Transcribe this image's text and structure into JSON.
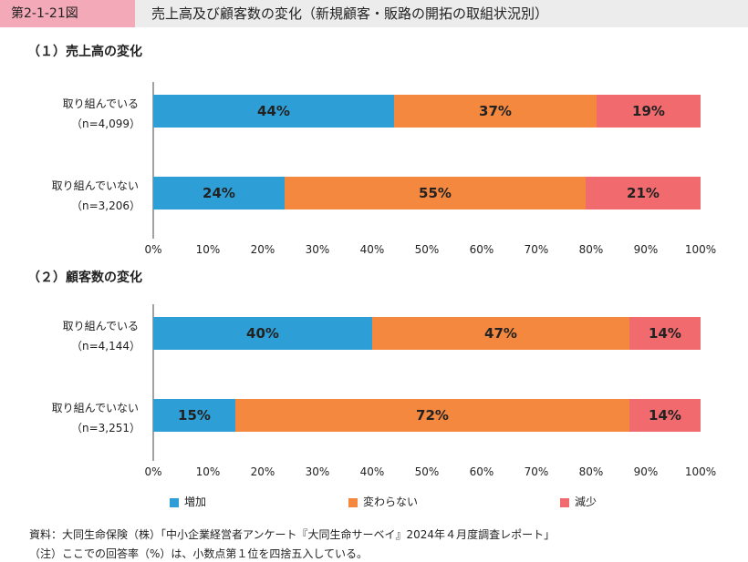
{
  "header": {
    "figure_number": "第2-1-21図",
    "title": "売上高及び顧客数の変化（新規顧客・販路の開拓の取組状況別）"
  },
  "colors": {
    "increase": "#2e9fd6",
    "unchanged": "#f5883f",
    "decrease": "#f06a6e"
  },
  "chart_data": [
    {
      "type": "bar",
      "orientation": "horizontal",
      "stacked": true,
      "title": "（１）売上高の変化",
      "categories": [
        [
          "取り組んでいる",
          "（n=4,099）"
        ],
        [
          "取り組んでいない",
          "（n=3,206）"
        ]
      ],
      "series": [
        {
          "name": "増加",
          "values": [
            44,
            24
          ]
        },
        {
          "name": "変わらない",
          "values": [
            37,
            55
          ]
        },
        {
          "name": "減少",
          "values": [
            19,
            21
          ]
        }
      ],
      "xlim": [
        0,
        100
      ],
      "xticks": [
        "0%",
        "10%",
        "20%",
        "30%",
        "40%",
        "50%",
        "60%",
        "70%",
        "80%",
        "90%",
        "100%"
      ]
    },
    {
      "type": "bar",
      "orientation": "horizontal",
      "stacked": true,
      "title": "（２）顧客数の変化",
      "categories": [
        [
          "取り組んでいる",
          "（n=4,144）"
        ],
        [
          "取り組んでいない",
          "（n=3,251）"
        ]
      ],
      "series": [
        {
          "name": "増加",
          "values": [
            40,
            15
          ]
        },
        {
          "name": "変わらない",
          "values": [
            47,
            72
          ]
        },
        {
          "name": "減少",
          "values": [
            14,
            14
          ]
        }
      ],
      "xlim": [
        0,
        100
      ],
      "xticks": [
        "0%",
        "10%",
        "20%",
        "30%",
        "40%",
        "50%",
        "60%",
        "70%",
        "80%",
        "90%",
        "100%"
      ]
    }
  ],
  "legend": {
    "placement": "bottom",
    "items": [
      "増加",
      "変わらない",
      "減少"
    ]
  },
  "notes": {
    "source": "資料：大同生命保険（株）「中小企業経営者アンケート『大同生命サーベイ』2024年４月度調査レポート」",
    "note": "（注）ここでの回答率（%）は、小数点第１位を四捨五入している。"
  }
}
